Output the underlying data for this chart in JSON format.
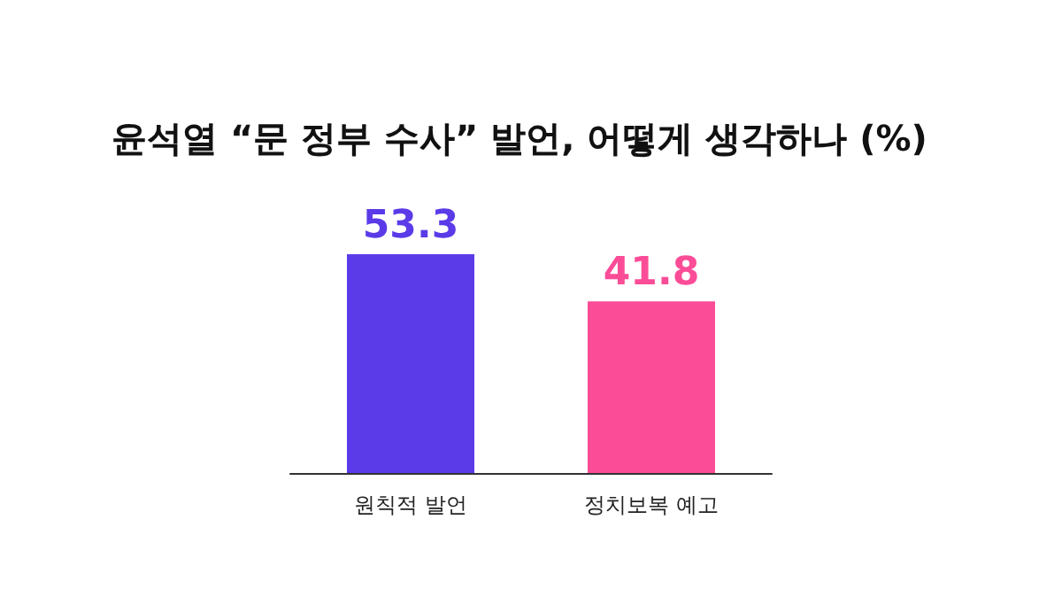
{
  "chart_data": {
    "type": "bar",
    "title": "윤석열 “문 정부 수사” 발언, 어떻게 생각하나 (%)",
    "categories": [
      "원칙적 발언",
      "정치보복 예고"
    ],
    "values": [
      53.3,
      41.8
    ],
    "colors": [
      "#5b3be8",
      "#fb4c97"
    ],
    "data_labels": true,
    "grid": false
  }
}
